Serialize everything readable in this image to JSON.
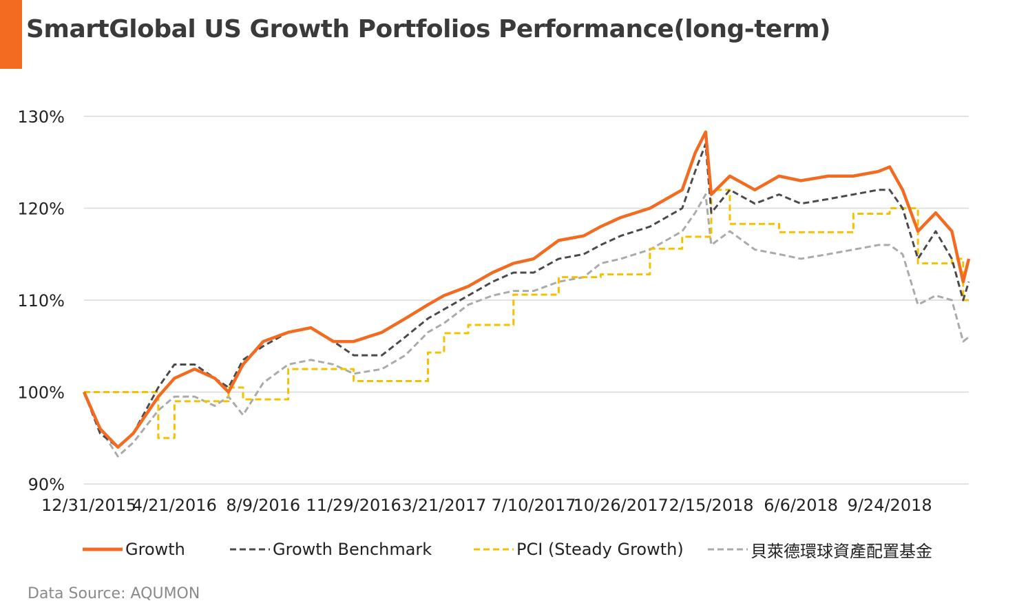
{
  "title": "SmartGlobal US Growth Portfolios Performance(long-term)",
  "source": "Data Source: AQUMON",
  "colors": {
    "accent": "#f26b21",
    "growth": "#f26b21",
    "benchmark": "#4a4a4a",
    "pci": "#f5c000",
    "blackrock": "#aaaaaa",
    "grid": "#d9d9d9"
  },
  "chart_data": {
    "type": "line",
    "title": "SmartGlobal US Growth Portfolios Performance(long-term)",
    "xlabel": "",
    "ylabel": "",
    "ylim": [
      90,
      130
    ],
    "y_ticks": [
      "90%",
      "100%",
      "110%",
      "120%",
      "130%"
    ],
    "x_tick_labels": [
      "12/31/2015",
      "4/21/2016",
      "8/9/2016",
      "11/29/2016",
      "3/21/2017",
      "7/10/2017",
      "10/26/2017",
      "2/15/2018",
      "6/6/2018",
      "9/24/2018"
    ],
    "grid": "horizontal",
    "legend_position": "bottom",
    "x_dates": [
      "12/31/2015",
      "1/20/2016",
      "2/11/2016",
      "3/1/2016",
      "4/1/2016",
      "4/21/2016",
      "5/16/2016",
      "6/10/2016",
      "6/27/2016",
      "7/15/2016",
      "8/9/2016",
      "9/9/2016",
      "10/7/2016",
      "11/4/2016",
      "11/29/2016",
      "1/3/2017",
      "2/1/2017",
      "3/1/2017",
      "3/21/2017",
      "4/20/2017",
      "5/20/2017",
      "6/15/2017",
      "7/10/2017",
      "8/10/2017",
      "9/10/2017",
      "10/1/2017",
      "10/26/2017",
      "12/1/2017",
      "1/10/2018",
      "1/26/2018",
      "2/8/2018",
      "2/15/2018",
      "3/10/2018",
      "4/10/2018",
      "5/10/2018",
      "6/6/2018",
      "7/10/2018",
      "8/10/2018",
      "9/10/2018",
      "9/24/2018",
      "10/10/2018",
      "10/29/2018",
      "11/20/2018",
      "12/10/2018",
      "12/24/2018",
      "12/31/2018"
    ],
    "series": [
      {
        "name": "Growth",
        "style": "solid",
        "values": [
          100.0,
          96.0,
          94.0,
          95.5,
          99.5,
          101.5,
          102.5,
          101.5,
          100.0,
          103.0,
          105.5,
          106.5,
          107.0,
          105.5,
          105.5,
          106.5,
          108.0,
          109.5,
          110.5,
          111.5,
          113.0,
          114.0,
          114.5,
          116.5,
          117.0,
          118.0,
          119.0,
          120.0,
          122.0,
          126.0,
          128.3,
          121.5,
          123.5,
          122.0,
          123.5,
          123.0,
          123.5,
          123.5,
          124.0,
          124.5,
          122.0,
          117.5,
          119.5,
          117.5,
          112.0,
          114.5
        ]
      },
      {
        "name": "Growth Benchmark",
        "style": "dashed",
        "values": [
          100.0,
          95.5,
          94.0,
          95.5,
          100.5,
          103.0,
          103.0,
          101.5,
          100.5,
          103.5,
          105.0,
          106.5,
          107.0,
          105.5,
          104.0,
          104.0,
          106.0,
          108.0,
          109.0,
          110.5,
          112.0,
          113.0,
          113.0,
          114.5,
          115.0,
          116.0,
          117.0,
          118.0,
          120.0,
          124.0,
          127.0,
          119.5,
          122.0,
          120.5,
          121.5,
          120.5,
          121.0,
          121.5,
          122.0,
          122.0,
          120.0,
          114.5,
          117.5,
          114.5,
          110.0,
          112.0
        ]
      },
      {
        "name": "PCI (Steady Growth)",
        "style": "dashed-step",
        "values": [
          100.0,
          100.0,
          100.0,
          100.0,
          95.0,
          99.0,
          99.0,
          99.0,
          100.5,
          99.2,
          99.2,
          102.5,
          102.5,
          102.5,
          101.2,
          101.2,
          101.2,
          104.3,
          106.4,
          107.3,
          107.3,
          110.6,
          110.6,
          112.5,
          112.5,
          112.8,
          112.8,
          115.6,
          116.9,
          116.9,
          116.9,
          122.0,
          118.3,
          118.3,
          117.4,
          117.4,
          117.4,
          119.4,
          119.4,
          120.0,
          120.0,
          114.0,
          114.0,
          114.5,
          110.0,
          110.0
        ]
      },
      {
        "name": "貝萊德環球資產配置基金",
        "style": "dashed",
        "values": [
          100.0,
          96.0,
          93.0,
          94.5,
          98.0,
          99.5,
          99.5,
          98.5,
          99.5,
          97.5,
          101.0,
          103.0,
          103.5,
          103.0,
          102.0,
          102.5,
          104.0,
          106.5,
          107.5,
          109.5,
          110.5,
          111.0,
          111.0,
          112.0,
          112.5,
          114.0,
          114.5,
          115.5,
          117.5,
          119.5,
          121.5,
          116.0,
          117.5,
          115.5,
          115.0,
          114.5,
          115.0,
          115.5,
          116.0,
          116.0,
          115.0,
          109.5,
          110.5,
          110.0,
          105.5,
          106.0
        ]
      }
    ]
  }
}
